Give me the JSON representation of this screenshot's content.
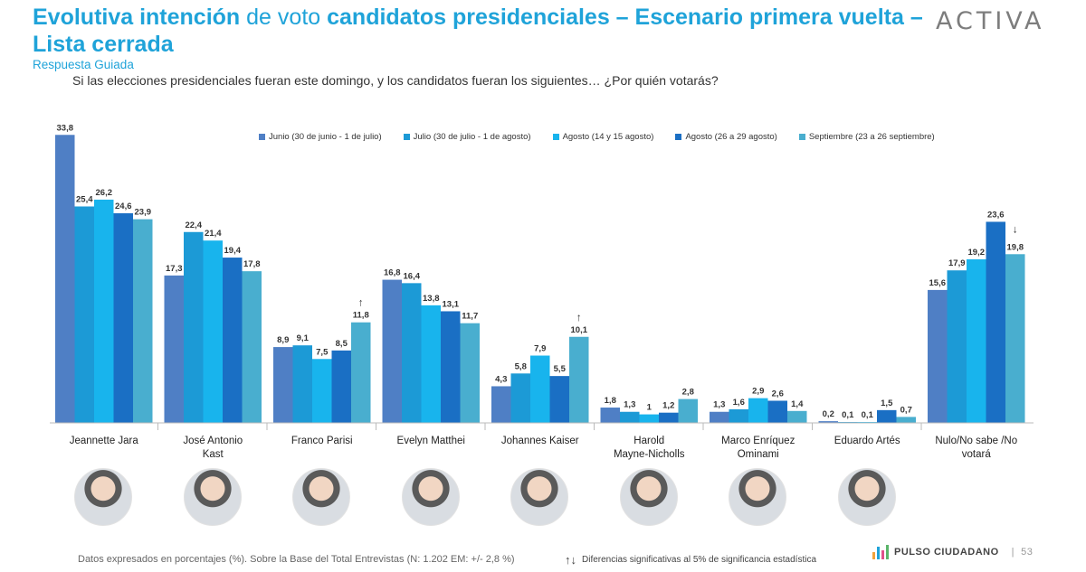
{
  "header": {
    "title_parts": [
      {
        "text": "Evolutiva intención ",
        "weight": "bold"
      },
      {
        "text": "de voto ",
        "weight": "normal"
      },
      {
        "text": "candidatos presidenciales – Escenario primera vuelta – Lista cerrada",
        "weight": "bold"
      }
    ],
    "subtitle": "Respuesta Guiada",
    "question": "Si las elecciones presidenciales fueran este domingo, y los candidatos fueran los siguientes… ¿Por quién votarás?",
    "logo": "ACTIVA"
  },
  "chart_data": {
    "type": "bar",
    "categories": [
      "Jeannette Jara",
      "José Antonio Kast",
      "Franco Parisi",
      "Evelyn Matthei",
      "Johannes Kaiser",
      "Harold Mayne-Nicholls",
      "Marco Enríquez Ominami",
      "Eduardo Artés",
      "Nulo/No sabe /No votará"
    ],
    "category_label_lines": [
      [
        "Jeannette Jara"
      ],
      [
        "José Antonio",
        "Kast"
      ],
      [
        "Franco Parisi"
      ],
      [
        "Evelyn Matthei"
      ],
      [
        "Johannes Kaiser"
      ],
      [
        "Harold",
        "Mayne-Nicholls"
      ],
      [
        "Marco Enríquez",
        "Ominami"
      ],
      [
        "Eduardo Artés"
      ],
      [
        "Nulo/No sabe /No",
        "votará"
      ]
    ],
    "series": [
      {
        "name": "Junio (30 de junio - 1 de julio)",
        "color": "#4f7fc5",
        "values": [
          33.8,
          17.3,
          8.9,
          16.8,
          4.3,
          1.8,
          1.3,
          0.2,
          15.6
        ]
      },
      {
        "name": "Julio (30 de julio - 1 de agosto)",
        "color": "#1c9ad6",
        "values": [
          25.4,
          22.4,
          9.1,
          16.4,
          5.8,
          1.3,
          1.6,
          0.1,
          17.9
        ]
      },
      {
        "name": "Agosto (14 y 15 agosto)",
        "color": "#18b4ed",
        "values": [
          26.2,
          21.4,
          7.5,
          13.8,
          7.9,
          1,
          2.9,
          0.1,
          19.2
        ]
      },
      {
        "name": "Agosto (26 a 29 agosto)",
        "color": "#1a6fc4",
        "values": [
          24.6,
          19.4,
          8.5,
          13.1,
          5.5,
          1.2,
          2.6,
          1.5,
          23.6
        ]
      },
      {
        "name": "Septiembre (23 a 26 septiembre)",
        "color": "#49aecf",
        "values": [
          23.9,
          17.8,
          11.8,
          11.7,
          10.1,
          2.8,
          1.4,
          0.7,
          19.8
        ]
      }
    ],
    "value_labels": [
      [
        "33,8",
        "17,3",
        "8,9",
        "16,8",
        "4,3",
        "1,8",
        "1,3",
        "0,2",
        "15,6"
      ],
      [
        "25,4",
        "22,4",
        "9,1",
        "16,4",
        "5,8",
        "1,3",
        "1,6",
        "0,1",
        "17,9"
      ],
      [
        "26,2",
        "21,4",
        "7,5",
        "13,8",
        "7,9",
        "1",
        "2,9",
        "0,1",
        "19,2"
      ],
      [
        "24,6",
        "19,4",
        "8,5",
        "13,1",
        "5,5",
        "1,2",
        "2,6",
        "1,5",
        "23,6"
      ],
      [
        "23,9",
        "17,8",
        "11,8",
        "11,7",
        "10,1",
        "2,8",
        "1,4",
        "0,7",
        "19,8"
      ]
    ],
    "significance_markers": [
      {
        "category": "Franco Parisi",
        "series": 4,
        "symbol": "↑"
      },
      {
        "category": "Johannes Kaiser",
        "series": 4,
        "symbol": "↑"
      },
      {
        "category": "Nulo/No sabe /No votará",
        "series": 4,
        "symbol": "↓"
      }
    ],
    "ylim": [
      0,
      36
    ],
    "grid": false,
    "legend_position": "top"
  },
  "photos": [
    "Jeannette Jara",
    "José Antonio Kast",
    "Franco Parisi",
    "Evelyn Matthei",
    "Johannes Kaiser",
    "Harold Mayne-Nicholls",
    "Marco Enríquez Ominami",
    "Eduardo Artés"
  ],
  "footer": {
    "note": "Datos expresados en porcentajes (%). Sobre la Base del Total Entrevistas (N: 1.202  EM: +/- 2,8 %)",
    "significance_icon": "↑↓",
    "significance_text": "Diferencias  significativas  al 5% de significancia estadística",
    "brand": "PULSO CIUDADANO",
    "page": "53"
  }
}
